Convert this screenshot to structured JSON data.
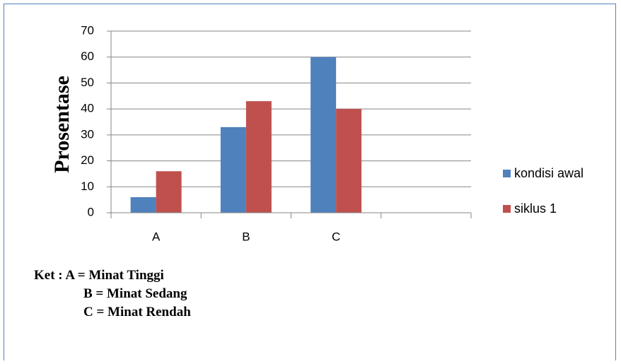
{
  "chart_data": {
    "type": "bar",
    "categories": [
      "A",
      "B",
      "C",
      ""
    ],
    "series": [
      {
        "name": "kondisi awal",
        "color": "#4f81bd",
        "values": [
          6,
          33,
          60,
          null
        ]
      },
      {
        "name": "siklus 1",
        "color": "#c0504d",
        "values": [
          16,
          43,
          40,
          null
        ]
      }
    ],
    "ylabel": "Prosentase",
    "ylim": [
      0,
      70
    ],
    "yticks": [
      0,
      10,
      20,
      30,
      40,
      50,
      60,
      70
    ],
    "grid": true,
    "legend": "right"
  },
  "notes": {
    "line1": "Ket : A = Minat Tinggi",
    "line2": "B = Minat Sedang",
    "line3": "C = Minat Rendah"
  }
}
